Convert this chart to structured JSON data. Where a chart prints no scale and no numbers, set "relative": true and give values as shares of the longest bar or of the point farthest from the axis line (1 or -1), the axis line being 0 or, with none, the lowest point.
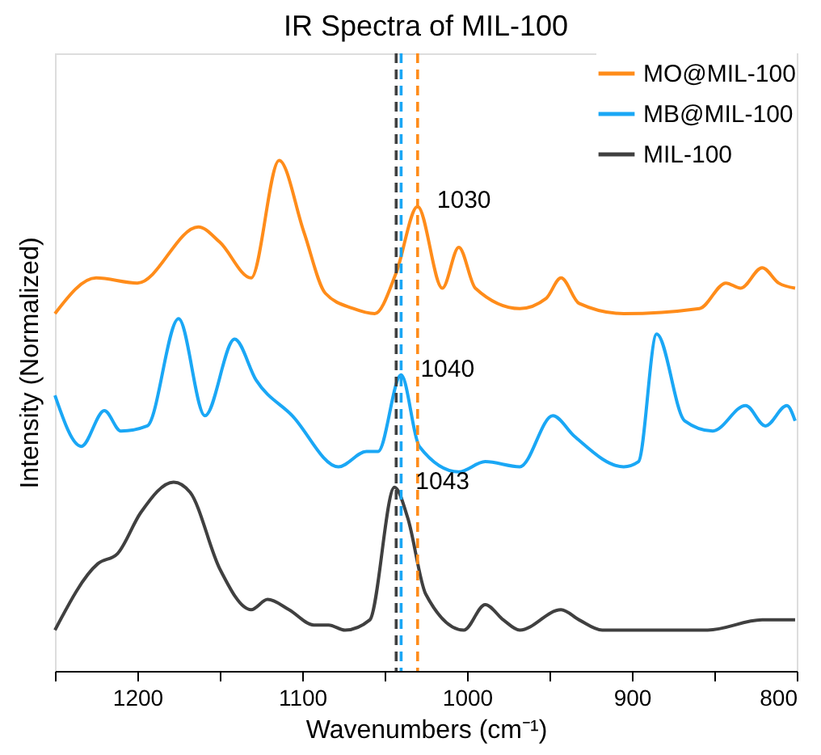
{
  "chart_data": {
    "type": "line",
    "title": "IR Spectra of MIL-100",
    "xlabel": "Wavenumbers (cm⁻¹)",
    "ylabel": "Intensity (Normalized)",
    "relative": true,
    "tick_labels": "x",
    "xlim": [
      1250,
      800
    ],
    "xticks": [
      {
        "value": 1250,
        "label": null
      },
      1200,
      {
        "value": 1150,
        "label": null
      },
      1100,
      {
        "value": 1050,
        "label": null
      },
      1000,
      {
        "value": 950,
        "label": null
      },
      900,
      {
        "value": 850,
        "label": null
      },
      800
    ],
    "legend": "top right",
    "grid": false,
    "line_style": "solid",
    "marker": "none",
    "series": [
      {
        "name": "MO@MIL-100",
        "color": "#ff8c1a",
        "x": [
          1250,
          1225,
          1200,
          1163,
          1150,
          1131,
          1114,
          1099,
          1086,
          1069,
          1056,
          1043,
          1030,
          1015,
          1005,
          995,
          968,
          952,
          943,
          932,
          905,
          859,
          843,
          834,
          821,
          811,
          801
        ],
        "values": [
          0.7,
          0.77,
          0.76,
          0.87,
          0.84,
          0.77,
          1.0,
          0.86,
          0.74,
          0.71,
          0.7,
          0.78,
          0.91,
          0.75,
          0.83,
          0.75,
          0.71,
          0.73,
          0.77,
          0.72,
          0.7,
          0.71,
          0.76,
          0.75,
          0.79,
          0.76,
          0.75
        ]
      },
      {
        "name": "MB@MIL-100",
        "color": "#1aa7f5",
        "x": [
          1250,
          1234,
          1220,
          1210,
          1194,
          1175,
          1159,
          1141,
          1128,
          1106,
          1078,
          1061,
          1054,
          1040,
          1029,
          1005,
          989,
          968,
          948,
          935,
          905,
          896,
          885,
          868,
          851,
          831,
          819,
          806,
          801
        ],
        "values": [
          0.54,
          0.44,
          0.51,
          0.47,
          0.48,
          0.69,
          0.5,
          0.65,
          0.57,
          0.5,
          0.4,
          0.43,
          0.43,
          0.58,
          0.44,
          0.39,
          0.41,
          0.4,
          0.5,
          0.46,
          0.4,
          0.41,
          0.66,
          0.49,
          0.47,
          0.52,
          0.48,
          0.52,
          0.49
        ]
      },
      {
        "name": "MIL-100",
        "color": "#404040",
        "x": [
          1250,
          1224,
          1212,
          1198,
          1178,
          1168,
          1150,
          1131,
          1121,
          1108,
          1093,
          1084,
          1074,
          1059,
          1044,
          1036,
          1025,
          1002,
          989,
          978,
          968,
          943,
          932,
          918,
          898,
          854,
          821,
          801
        ],
        "values": [
          0.08,
          0.21,
          0.23,
          0.31,
          0.37,
          0.35,
          0.2,
          0.12,
          0.14,
          0.12,
          0.09,
          0.09,
          0.08,
          0.1,
          0.36,
          0.3,
          0.15,
          0.08,
          0.13,
          0.1,
          0.08,
          0.12,
          0.1,
          0.08,
          0.08,
          0.08,
          0.1,
          0.1
        ]
      }
    ],
    "ref_lines": [
      {
        "axis": "x",
        "value": 1043,
        "color": "#404040",
        "line_style": "dashed"
      },
      {
        "axis": "x",
        "value": 1040,
        "color": "#1aa7f5",
        "line_style": "dashed"
      },
      {
        "axis": "x",
        "value": 1030,
        "color": "#ff8c1a",
        "line_style": "dashed"
      }
    ],
    "annotations": [
      {
        "text": "1030",
        "x": 1030,
        "y": 0.91
      },
      {
        "text": "1040",
        "x": 1040,
        "y": 0.58
      },
      {
        "text": "1043",
        "x": 1043,
        "y": 0.36
      }
    ]
  }
}
